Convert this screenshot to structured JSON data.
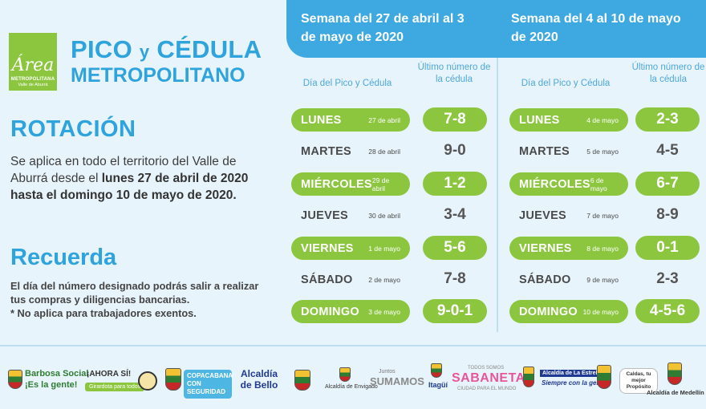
{
  "logo": {
    "mark": "Área",
    "line1": "METROPOLITANA",
    "line2": "Valle de Aburrá"
  },
  "title": {
    "line1_a": "PICO",
    "line1_y": "y",
    "line1_b": "CÉDULA",
    "line2": "METROPOLITANO"
  },
  "rotation": {
    "heading": "ROTACIÓN",
    "text_normal": "Se aplica en todo el territorio del Valle de Aburrá desde el",
    "text_bold": "lunes 27 de abril de 2020 hasta el domingo 10 de mayo de 2020."
  },
  "reminder": {
    "heading": "Recuerda",
    "line1": "El día del número designado podrás salir a realizar tus compras y diligencias bancarias.",
    "line2": "* No aplica para trabajadores exentos."
  },
  "columns": {
    "day_header": "Día del Pico y Cédula",
    "num_header": "Último número de la cédula"
  },
  "weeks": [
    {
      "title": "Semana del 27 de abril al 3 de mayo de 2020",
      "rows": [
        {
          "day": "LUNES",
          "date": "27 de abril",
          "digits": "7-8",
          "highlight": true
        },
        {
          "day": "MARTES",
          "date": "28 de abril",
          "digits": "9-0",
          "highlight": false
        },
        {
          "day": "MIÉRCOLES",
          "date": "29 de abril",
          "digits": "1-2",
          "highlight": true
        },
        {
          "day": "JUEVES",
          "date": "30 de abril",
          "digits": "3-4",
          "highlight": false
        },
        {
          "day": "VIERNES",
          "date": "1 de mayo",
          "digits": "5-6",
          "highlight": true
        },
        {
          "day": "SÁBADO",
          "date": "2 de mayo",
          "digits": "7-8",
          "highlight": false
        },
        {
          "day": "DOMINGO",
          "date": "3 de mayo",
          "digits": "9-0-1",
          "highlight": true
        }
      ]
    },
    {
      "title": "Semana del 4 al 10 de mayo de 2020",
      "rows": [
        {
          "day": "LUNES",
          "date": "4 de mayo",
          "digits": "2-3",
          "highlight": true
        },
        {
          "day": "MARTES",
          "date": "5 de mayo",
          "digits": "4-5",
          "highlight": false
        },
        {
          "day": "MIÉRCOLES",
          "date": "6 de mayo",
          "digits": "6-7",
          "highlight": true
        },
        {
          "day": "JUEVES",
          "date": "7 de mayo",
          "digits": "8-9",
          "highlight": false
        },
        {
          "day": "VIERNES",
          "date": "8 de mayo",
          "digits": "0-1",
          "highlight": true
        },
        {
          "day": "SÁBADO",
          "date": "9 de mayo",
          "digits": "2-3",
          "highlight": false
        },
        {
          "day": "DOMINGO",
          "date": "10 de mayo",
          "digits": "4-5-6",
          "highlight": true
        }
      ]
    }
  ],
  "footer": {
    "barbosa_1": "Barbosa Social",
    "barbosa_2": "¡Es la gente!",
    "ahora": "¡AHORA SÍ!",
    "ahora_sub": "Girardota para todos",
    "copacabana": "COPACABANA CON SEGURIDAD",
    "bello": "Alcaldía de Bello",
    "envigado": "Alcaldía de Envigado",
    "itagui_1": "Juntos",
    "itagui_2": "SUMAMOS",
    "itagui_3": "Itagüí",
    "sabaneta_1": "TODOS SOMOS",
    "sabaneta_2": "SABANETA",
    "sabaneta_3": "CIUDAD PARA EL MUNDO",
    "estrella_1": "Alcaldía de La Estrella",
    "estrella_2": "Siempre con la gente",
    "caldas": "Caldas, tu mejor Propósito",
    "medellin": "Alcaldía de Medellín"
  }
}
